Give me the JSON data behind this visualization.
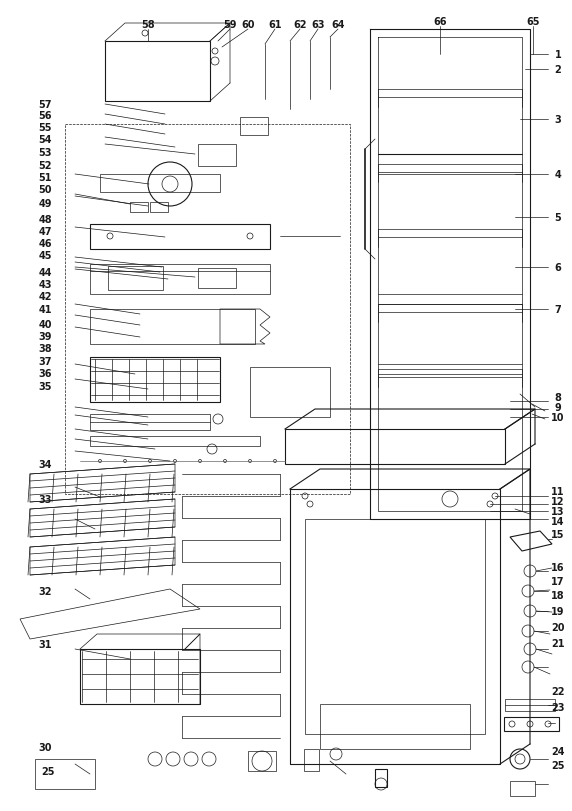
{
  "bg_color": "#f5f5f5",
  "line_color": "#1a1a1a",
  "fig_width": 5.72,
  "fig_height": 8.12,
  "dpi": 100
}
